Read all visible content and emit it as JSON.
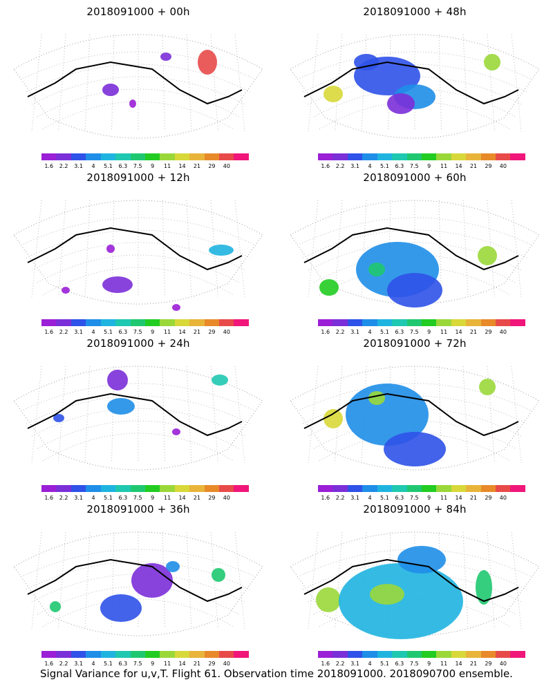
{
  "footer": "Signal Variance for u,v,T. Flight 61. Observation time 2018091000. 2018090700 ensemble.",
  "colorbar": {
    "levels": [
      "1.6",
      "2.2",
      "3.1",
      "4",
      "5.1",
      "6.3",
      "7.5",
      "9",
      "11",
      "14",
      "21",
      "29",
      "40"
    ],
    "colors": [
      "#9a1fd6",
      "#7b2fd8",
      "#2f52e8",
      "#1f8ee8",
      "#1fb4e0",
      "#1fc8b0",
      "#1fc870",
      "#22cc22",
      "#9ad83a",
      "#d8d83a",
      "#e8b43a",
      "#e88a2a",
      "#e84a4a",
      "#f0167a"
    ]
  },
  "chart_data": [
    {
      "type": "heatmap",
      "title": "2018091000 + 00h",
      "colorbar_levels": [
        1.6,
        2.2,
        3.1,
        4,
        5.1,
        6.3,
        7.5,
        9,
        11,
        14,
        21,
        29,
        40
      ]
    },
    {
      "type": "heatmap",
      "title": "2018091000 + 48h",
      "colorbar_levels": [
        1.6,
        2.2,
        3.1,
        4,
        5.1,
        6.3,
        7.5,
        9,
        11,
        14,
        21,
        29,
        40
      ]
    },
    {
      "type": "heatmap",
      "title": "2018091000 + 12h",
      "colorbar_levels": [
        1.6,
        2.2,
        3.1,
        4,
        5.1,
        6.3,
        7.5,
        9,
        11,
        14,
        21,
        29,
        40
      ]
    },
    {
      "type": "heatmap",
      "title": "2018091000 + 60h",
      "colorbar_levels": [
        1.6,
        2.2,
        3.1,
        4,
        5.1,
        6.3,
        7.5,
        9,
        11,
        14,
        21,
        29,
        40
      ]
    },
    {
      "type": "heatmap",
      "title": "2018091000 + 24h",
      "colorbar_levels": [
        1.6,
        2.2,
        3.1,
        4,
        5.1,
        6.3,
        7.5,
        9,
        11,
        14,
        21,
        29,
        40
      ]
    },
    {
      "type": "heatmap",
      "title": "2018091000 + 72h",
      "colorbar_levels": [
        1.6,
        2.2,
        3.1,
        4,
        5.1,
        6.3,
        7.5,
        9,
        11,
        14,
        21,
        29,
        40
      ]
    },
    {
      "type": "heatmap",
      "title": "2018091000 + 36h",
      "colorbar_levels": [
        1.6,
        2.2,
        3.1,
        4,
        5.1,
        6.3,
        7.5,
        9,
        11,
        14,
        21,
        29,
        40
      ]
    },
    {
      "type": "heatmap",
      "title": "2018091000 + 84h",
      "colorbar_levels": [
        1.6,
        2.2,
        3.1,
        4,
        5.1,
        6.3,
        7.5,
        9,
        11,
        14,
        21,
        29,
        40
      ]
    }
  ]
}
